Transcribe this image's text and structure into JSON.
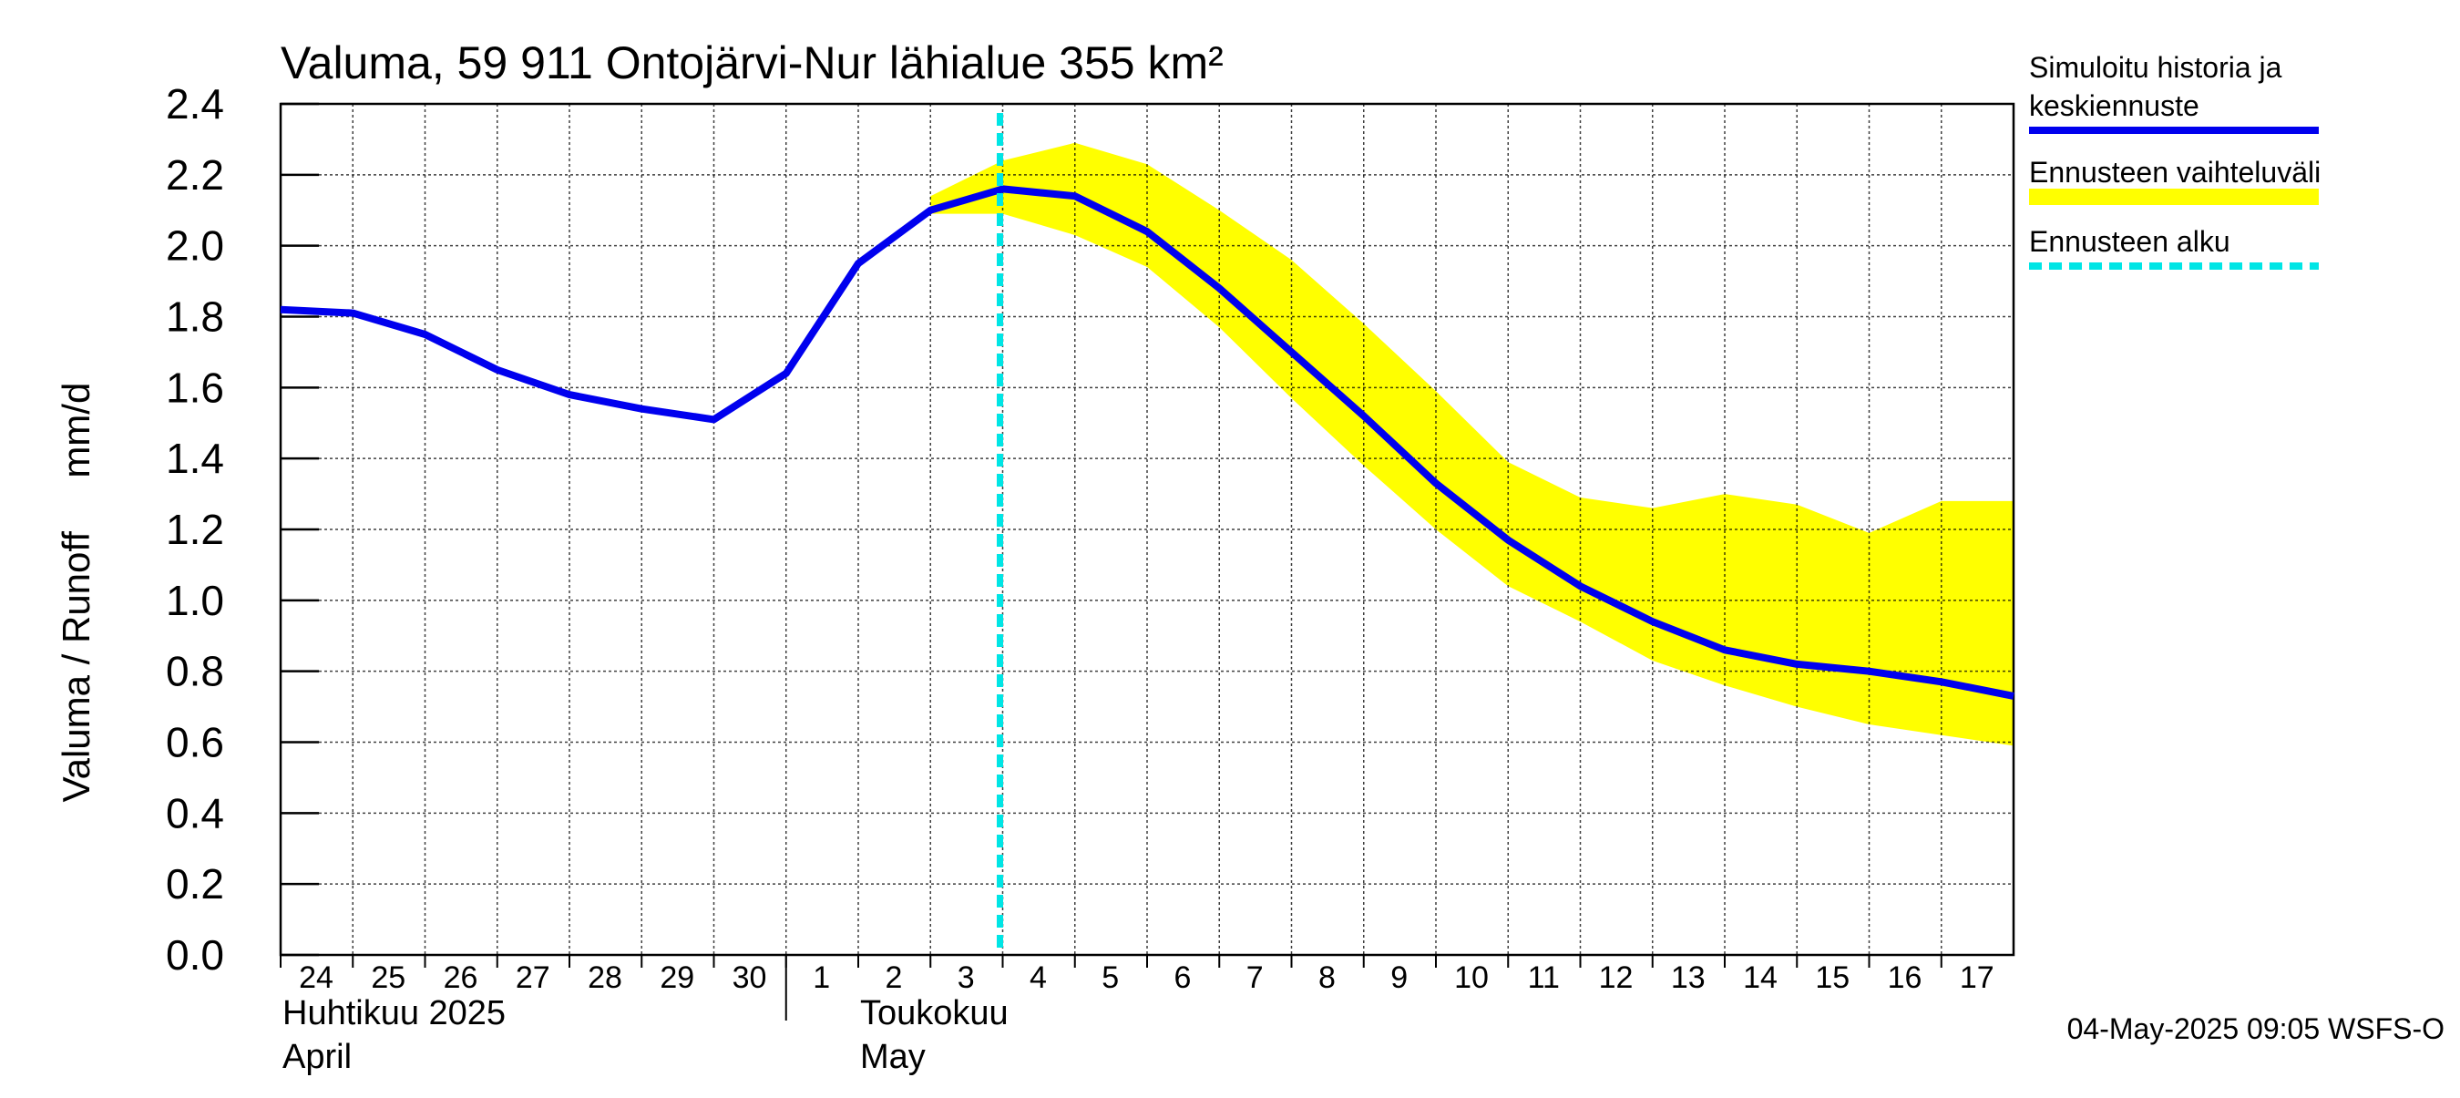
{
  "chart_data": {
    "type": "line",
    "title": "Valuma, 59 911 Ontojärvi-Nur lähialue 355 km²",
    "ylabel": "Valuma / Runoff     mm/d",
    "ylim": [
      0,
      2.4
    ],
    "yticks": [
      "0.0",
      "0.2",
      "0.4",
      "0.6",
      "0.8",
      "1.0",
      "1.2",
      "1.4",
      "1.6",
      "1.8",
      "2.0",
      "2.2",
      "2.4"
    ],
    "xlim": [
      "2025-04-24",
      "2025-05-18"
    ],
    "x_tick_labels": [
      {
        "date": "2025-04-24",
        "label": "24"
      },
      {
        "date": "2025-04-25",
        "label": "25"
      },
      {
        "date": "2025-04-26",
        "label": "26"
      },
      {
        "date": "2025-04-27",
        "label": "27"
      },
      {
        "date": "2025-04-28",
        "label": "28"
      },
      {
        "date": "2025-04-29",
        "label": "29"
      },
      {
        "date": "2025-04-30",
        "label": "30"
      },
      {
        "date": "2025-05-01",
        "label": "1"
      },
      {
        "date": "2025-05-02",
        "label": "2"
      },
      {
        "date": "2025-05-03",
        "label": "3"
      },
      {
        "date": "2025-05-04",
        "label": "4"
      },
      {
        "date": "2025-05-05",
        "label": "5"
      },
      {
        "date": "2025-05-06",
        "label": "6"
      },
      {
        "date": "2025-05-07",
        "label": "7"
      },
      {
        "date": "2025-05-08",
        "label": "8"
      },
      {
        "date": "2025-05-09",
        "label": "9"
      },
      {
        "date": "2025-05-10",
        "label": "10"
      },
      {
        "date": "2025-05-11",
        "label": "11"
      },
      {
        "date": "2025-05-12",
        "label": "12"
      },
      {
        "date": "2025-05-13",
        "label": "13"
      },
      {
        "date": "2025-05-14",
        "label": "14"
      },
      {
        "date": "2025-05-15",
        "label": "15"
      },
      {
        "date": "2025-05-16",
        "label": "16"
      },
      {
        "date": "2025-05-17",
        "label": "17"
      }
    ],
    "month_labels": [
      {
        "date": "2025-04-24",
        "lines": [
          "Huhtikuu  2025",
          "April"
        ]
      },
      {
        "date": "2025-05-02",
        "lines": [
          "Toukokuu",
          "May"
        ]
      }
    ],
    "month_separator_date": "2025-05-01",
    "series": [
      {
        "name": "Simuloitu historia ja keskiennuste",
        "color": "#0000ee",
        "points": [
          [
            "2025-04-24",
            1.82
          ],
          [
            "2025-04-25",
            1.81
          ],
          [
            "2025-04-26",
            1.75
          ],
          [
            "2025-04-27",
            1.65
          ],
          [
            "2025-04-28",
            1.58
          ],
          [
            "2025-04-29",
            1.54
          ],
          [
            "2025-04-30",
            1.51
          ],
          [
            "2025-05-01",
            1.64
          ],
          [
            "2025-05-02",
            1.95
          ],
          [
            "2025-05-03",
            2.1
          ],
          [
            "2025-05-04",
            2.16
          ],
          [
            "2025-05-05",
            2.14
          ],
          [
            "2025-05-06",
            2.04
          ],
          [
            "2025-05-07",
            1.88
          ],
          [
            "2025-05-08",
            1.7
          ],
          [
            "2025-05-09",
            1.52
          ],
          [
            "2025-05-10",
            1.33
          ],
          [
            "2025-05-11",
            1.17
          ],
          [
            "2025-05-12",
            1.04
          ],
          [
            "2025-05-13",
            0.94
          ],
          [
            "2025-05-14",
            0.86
          ],
          [
            "2025-05-15",
            0.82
          ],
          [
            "2025-05-16",
            0.8
          ],
          [
            "2025-05-17",
            0.77
          ],
          [
            "2025-05-18",
            0.73
          ]
        ]
      },
      {
        "name": "Ennusteen vaihteluväli",
        "type": "band",
        "color": "#ffff00",
        "upper": [
          [
            "2025-05-03",
            2.14
          ],
          [
            "2025-05-04",
            2.24
          ],
          [
            "2025-05-05",
            2.29
          ],
          [
            "2025-05-06",
            2.23
          ],
          [
            "2025-05-07",
            2.1
          ],
          [
            "2025-05-08",
            1.96
          ],
          [
            "2025-05-09",
            1.78
          ],
          [
            "2025-05-10",
            1.59
          ],
          [
            "2025-05-11",
            1.39
          ],
          [
            "2025-05-12",
            1.29
          ],
          [
            "2025-05-13",
            1.26
          ],
          [
            "2025-05-14",
            1.3
          ],
          [
            "2025-05-15",
            1.27
          ],
          [
            "2025-05-16",
            1.19
          ],
          [
            "2025-05-17",
            1.28
          ],
          [
            "2025-05-18",
            1.28
          ]
        ],
        "lower": [
          [
            "2025-05-03",
            2.09
          ],
          [
            "2025-05-04",
            2.09
          ],
          [
            "2025-05-05",
            2.03
          ],
          [
            "2025-05-06",
            1.94
          ],
          [
            "2025-05-07",
            1.77
          ],
          [
            "2025-05-08",
            1.57
          ],
          [
            "2025-05-09",
            1.38
          ],
          [
            "2025-05-10",
            1.2
          ],
          [
            "2025-05-11",
            1.04
          ],
          [
            "2025-05-12",
            0.94
          ],
          [
            "2025-05-13",
            0.83
          ],
          [
            "2025-05-14",
            0.76
          ],
          [
            "2025-05-15",
            0.7
          ],
          [
            "2025-05-16",
            0.65
          ],
          [
            "2025-05-17",
            0.62
          ],
          [
            "2025-05-18",
            0.59
          ]
        ]
      },
      {
        "name": "Ennusteen alku",
        "type": "vline",
        "color": "#00e5e5",
        "x": "2025-05-04"
      }
    ],
    "legend": {
      "placement": "right",
      "entries": [
        {
          "lines": [
            "Simuloitu historia ja",
            "keskiennuste"
          ],
          "color": "#0000ee",
          "style": "solid"
        },
        {
          "lines": [
            "Ennusteen vaihteluväli"
          ],
          "color": "#ffff00",
          "style": "band"
        },
        {
          "lines": [
            "Ennusteen alku"
          ],
          "color": "#00e5e5",
          "style": "dashed"
        }
      ]
    },
    "grid": true,
    "footer": "04-May-2025 09:05 WSFS-O"
  }
}
